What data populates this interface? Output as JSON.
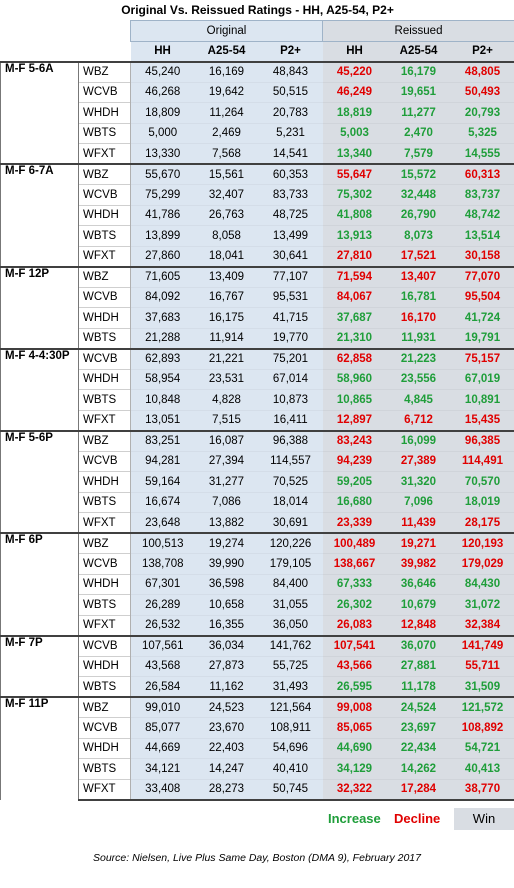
{
  "title": "Original Vs. Reissued Ratings - HH, A25-54, P2+",
  "group_headers": {
    "original": "Original",
    "reissued": "Reissued"
  },
  "columns": [
    "HH",
    "A25-54",
    "P2+",
    "HH",
    "A25-54",
    "P2+"
  ],
  "legend": {
    "increase": "Increase",
    "decline": "Decline",
    "win": "Win"
  },
  "colors": {
    "increase": "#1f9e3a",
    "decline": "#e00000",
    "win_fill": "#d9dde3",
    "original_fill": "#dce6f1"
  },
  "source": "Source: Nielsen, Live Plus Same Day, Boston (DMA 9), February 2017",
  "groups": [
    {
      "daypart": "M-F 5-6A",
      "rows": [
        {
          "station": "WBZ",
          "orig": [
            "45,240",
            "16,169",
            "48,843"
          ],
          "reis": [
            "45,220",
            "16,179",
            "48,805"
          ]
        },
        {
          "station": "WCVB",
          "orig": [
            "46,268",
            "19,642",
            "50,515"
          ],
          "reis": [
            "46,249",
            "19,651",
            "50,493"
          ]
        },
        {
          "station": "WHDH",
          "orig": [
            "18,809",
            "11,264",
            "20,783"
          ],
          "reis": [
            "18,819",
            "11,277",
            "20,793"
          ]
        },
        {
          "station": "WBTS",
          "orig": [
            "5,000",
            "2,469",
            "5,231"
          ],
          "reis": [
            "5,003",
            "2,470",
            "5,325"
          ]
        },
        {
          "station": "WFXT",
          "orig": [
            "13,330",
            "7,568",
            "14,541"
          ],
          "reis": [
            "13,340",
            "7,579",
            "14,555"
          ]
        }
      ]
    },
    {
      "daypart": "M-F 6-7A",
      "rows": [
        {
          "station": "WBZ",
          "orig": [
            "55,670",
            "15,561",
            "60,353"
          ],
          "reis": [
            "55,647",
            "15,572",
            "60,313"
          ]
        },
        {
          "station": "WCVB",
          "orig": [
            "75,299",
            "32,407",
            "83,733"
          ],
          "reis": [
            "75,302",
            "32,448",
            "83,737"
          ]
        },
        {
          "station": "WHDH",
          "orig": [
            "41,786",
            "26,763",
            "48,725"
          ],
          "reis": [
            "41,808",
            "26,790",
            "48,742"
          ]
        },
        {
          "station": "WBTS",
          "orig": [
            "13,899",
            "8,058",
            "13,499"
          ],
          "reis": [
            "13,913",
            "8,073",
            "13,514"
          ]
        },
        {
          "station": "WFXT",
          "orig": [
            "27,860",
            "18,041",
            "30,641"
          ],
          "reis": [
            "27,810",
            "17,521",
            "30,158"
          ]
        }
      ]
    },
    {
      "daypart": "M-F 12P",
      "rows": [
        {
          "station": "WBZ",
          "orig": [
            "71,605",
            "13,409",
            "77,107"
          ],
          "reis": [
            "71,594",
            "13,407",
            "77,070"
          ]
        },
        {
          "station": "WCVB",
          "orig": [
            "84,092",
            "16,767",
            "95,531"
          ],
          "reis": [
            "84,067",
            "16,781",
            "95,504"
          ]
        },
        {
          "station": "WHDH",
          "orig": [
            "37,683",
            "16,175",
            "41,715"
          ],
          "reis": [
            "37,687",
            "16,170",
            "41,724"
          ]
        },
        {
          "station": "WBTS",
          "orig": [
            "21,288",
            "11,914",
            "19,770"
          ],
          "reis": [
            "21,310",
            "11,931",
            "19,791"
          ]
        }
      ]
    },
    {
      "daypart": "M-F 4-4:30P",
      "rows": [
        {
          "station": "WCVB",
          "orig": [
            "62,893",
            "21,221",
            "75,201"
          ],
          "reis": [
            "62,858",
            "21,223",
            "75,157"
          ]
        },
        {
          "station": "WHDH",
          "orig": [
            "58,954",
            "23,531",
            "67,014"
          ],
          "reis": [
            "58,960",
            "23,556",
            "67,019"
          ]
        },
        {
          "station": "WBTS",
          "orig": [
            "10,848",
            "4,828",
            "10,873"
          ],
          "reis": [
            "10,865",
            "4,845",
            "10,891"
          ]
        },
        {
          "station": "WFXT",
          "orig": [
            "13,051",
            "7,515",
            "16,411"
          ],
          "reis": [
            "12,897",
            "6,712",
            "15,435"
          ]
        }
      ]
    },
    {
      "daypart": "M-F 5-6P",
      "rows": [
        {
          "station": "WBZ",
          "orig": [
            "83,251",
            "16,087",
            "96,388"
          ],
          "reis": [
            "83,243",
            "16,099",
            "96,385"
          ]
        },
        {
          "station": "WCVB",
          "orig": [
            "94,281",
            "27,394",
            "114,557"
          ],
          "reis": [
            "94,239",
            "27,389",
            "114,491"
          ]
        },
        {
          "station": "WHDH",
          "orig": [
            "59,164",
            "31,277",
            "70,525"
          ],
          "reis": [
            "59,205",
            "31,320",
            "70,570"
          ]
        },
        {
          "station": "WBTS",
          "orig": [
            "16,674",
            "7,086",
            "18,014"
          ],
          "reis": [
            "16,680",
            "7,096",
            "18,019"
          ]
        },
        {
          "station": "WFXT",
          "orig": [
            "23,648",
            "13,882",
            "30,691"
          ],
          "reis": [
            "23,339",
            "11,439",
            "28,175"
          ]
        }
      ]
    },
    {
      "daypart": "M-F 6P",
      "rows": [
        {
          "station": "WBZ",
          "orig": [
            "100,513",
            "19,274",
            "120,226"
          ],
          "reis": [
            "100,489",
            "19,271",
            "120,193"
          ]
        },
        {
          "station": "WCVB",
          "orig": [
            "138,708",
            "39,990",
            "179,105"
          ],
          "reis": [
            "138,667",
            "39,982",
            "179,029"
          ]
        },
        {
          "station": "WHDH",
          "orig": [
            "67,301",
            "36,598",
            "84,400"
          ],
          "reis": [
            "67,333",
            "36,646",
            "84,430"
          ]
        },
        {
          "station": "WBTS",
          "orig": [
            "26,289",
            "10,658",
            "31,055"
          ],
          "reis": [
            "26,302",
            "10,679",
            "31,072"
          ]
        },
        {
          "station": "WFXT",
          "orig": [
            "26,532",
            "16,355",
            "36,050"
          ],
          "reis": [
            "26,083",
            "12,848",
            "32,384"
          ]
        }
      ]
    },
    {
      "daypart": "M-F 7P",
      "rows": [
        {
          "station": "WCVB",
          "orig": [
            "107,561",
            "36,034",
            "141,762"
          ],
          "reis": [
            "107,541",
            "36,070",
            "141,749"
          ]
        },
        {
          "station": "WHDH",
          "orig": [
            "43,568",
            "27,873",
            "55,725"
          ],
          "reis": [
            "43,566",
            "27,881",
            "55,711"
          ]
        },
        {
          "station": "WBTS",
          "orig": [
            "26,584",
            "11,162",
            "31,493"
          ],
          "reis": [
            "26,595",
            "11,178",
            "31,509"
          ]
        }
      ]
    },
    {
      "daypart": "M-F 11P",
      "rows": [
        {
          "station": "WBZ",
          "orig": [
            "99,010",
            "24,523",
            "121,564"
          ],
          "reis": [
            "99,008",
            "24,524",
            "121,572"
          ]
        },
        {
          "station": "WCVB",
          "orig": [
            "85,077",
            "23,670",
            "108,911"
          ],
          "reis": [
            "85,065",
            "23,697",
            "108,892"
          ]
        },
        {
          "station": "WHDH",
          "orig": [
            "44,669",
            "22,403",
            "54,696"
          ],
          "reis": [
            "44,690",
            "22,434",
            "54,721"
          ]
        },
        {
          "station": "WBTS",
          "orig": [
            "34,121",
            "14,247",
            "40,410"
          ],
          "reis": [
            "34,129",
            "14,262",
            "40,413"
          ]
        },
        {
          "station": "WFXT",
          "orig": [
            "33,408",
            "28,273",
            "50,745"
          ],
          "reis": [
            "32,322",
            "17,284",
            "38,770"
          ]
        }
      ]
    }
  ]
}
